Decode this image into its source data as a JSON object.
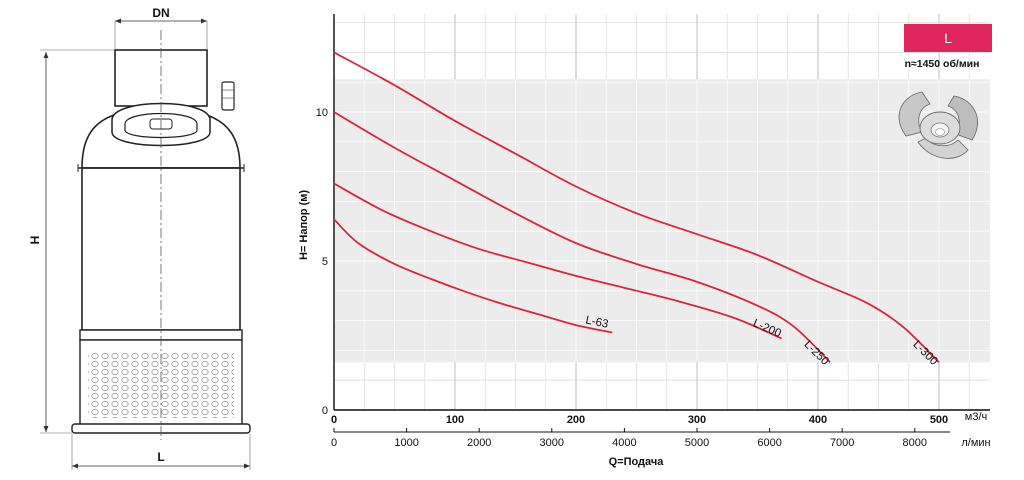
{
  "pump_drawing": {
    "dn_label": "DN",
    "h_label": "H",
    "l_label": "L"
  },
  "badge": {
    "label": "L",
    "color": "#e0245e"
  },
  "speed_note": "n≈1450 об/мин",
  "impeller": "impeller-icon",
  "chart_data": {
    "type": "line",
    "xlabel": "Q=Подача",
    "ylabel": "H= Напор (м)",
    "x_unit": "м3/ч",
    "x2_unit": "л/мин",
    "xlim": [
      0,
      500
    ],
    "ylim": [
      0,
      13
    ],
    "x_ticks": [
      0,
      100,
      200,
      300,
      400,
      500
    ],
    "x2_ticks": [
      0,
      1000,
      2000,
      3000,
      4000,
      5000,
      6000,
      7000,
      8000
    ],
    "x2_per_x": 16.667,
    "y_ticks": [
      0,
      5,
      10
    ],
    "grid": true,
    "band": {
      "y_from": 1.6,
      "y_to": 11.1
    },
    "line_color": "#d7263d",
    "series": [
      {
        "name": "L-63",
        "x": [
          0,
          20,
          50,
          80,
          110,
          140,
          170,
          200,
          230
        ],
        "y": [
          6.4,
          5.6,
          4.9,
          4.4,
          3.95,
          3.55,
          3.2,
          2.85,
          2.6
        ]
      },
      {
        "name": "L-200",
        "x": [
          0,
          40,
          80,
          120,
          160,
          200,
          240,
          280,
          330,
          370
        ],
        "y": [
          7.6,
          6.7,
          6.0,
          5.4,
          4.95,
          4.5,
          4.1,
          3.7,
          3.1,
          2.4
        ]
      },
      {
        "name": "L-250",
        "x": [
          0,
          50,
          100,
          150,
          200,
          250,
          300,
          350,
          380,
          410
        ],
        "y": [
          10.0,
          8.8,
          7.7,
          6.6,
          5.6,
          4.9,
          4.3,
          3.5,
          2.8,
          1.6
        ]
      },
      {
        "name": "L-300",
        "x": [
          0,
          50,
          100,
          150,
          200,
          250,
          300,
          350,
          400,
          440,
          470,
          500
        ],
        "y": [
          12.0,
          10.9,
          9.7,
          8.6,
          7.5,
          6.6,
          5.9,
          5.2,
          4.3,
          3.6,
          2.8,
          1.6
        ]
      }
    ]
  }
}
